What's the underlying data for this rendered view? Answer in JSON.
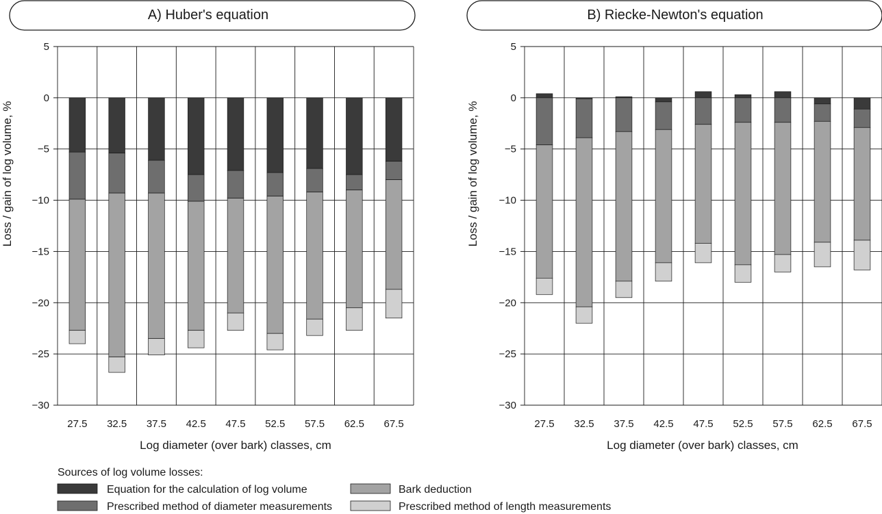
{
  "colors": {
    "equation": "#3a3a3a",
    "diameter": "#6e6e6e",
    "bark": "#a3a3a3",
    "length": "#d0d0d0",
    "grid": "#1a1a1a"
  },
  "chart_data": [
    {
      "type": "bar",
      "title": "A)  Huber's equation",
      "xlabel": "Log diameter (over bark) classes, cm",
      "ylabel": "Loss / gain of log volume, %",
      "categories": [
        "27.5",
        "32.5",
        "37.5",
        "42.5",
        "47.5",
        "52.5",
        "57.5",
        "62.5",
        "67.5"
      ],
      "ylim": [
        -30,
        5
      ],
      "yticks": [
        "5",
        "0",
        "-5",
        "-10",
        "-15",
        "-20",
        "-25",
        "-30"
      ],
      "ytick_values": [
        5,
        0,
        -5,
        -10,
        -15,
        -20,
        -25,
        -30
      ],
      "grid": true,
      "series": [
        {
          "name": "Equation for the calculation of log volume",
          "values": [
            -5.3,
            -5.4,
            -6.1,
            -7.5,
            -7.1,
            -7.3,
            -6.9,
            -7.5,
            -6.2
          ]
        },
        {
          "name": "Prescribed method of diameter measurements",
          "values": [
            -4.6,
            -3.9,
            -3.2,
            -2.6,
            -2.7,
            -2.3,
            -2.3,
            -1.5,
            -1.8
          ]
        },
        {
          "name": "Bark deduction",
          "values": [
            -12.8,
            -16.0,
            -14.2,
            -12.6,
            -11.2,
            -13.4,
            -12.4,
            -11.5,
            -10.7
          ]
        },
        {
          "name": "Prescribed method of length measurements",
          "values": [
            -1.3,
            -1.5,
            -1.6,
            -1.7,
            -1.7,
            -1.6,
            -1.6,
            -2.2,
            -2.8
          ]
        }
      ]
    },
    {
      "type": "bar",
      "title": "B) Riecke-Newton's equation",
      "xlabel": "Log diameter (over bark) classes, cm",
      "ylabel": "Loss / gain of log volume, %",
      "categories": [
        "27.5",
        "32.5",
        "37.5",
        "42.5",
        "47.5",
        "52.5",
        "57.5",
        "62.5",
        "67.5"
      ],
      "ylim": [
        -30,
        5
      ],
      "yticks": [
        "5",
        "0",
        "-5",
        "-10",
        "-15",
        "-20",
        "-25",
        "-30"
      ],
      "ytick_values": [
        5,
        0,
        -5,
        -10,
        -15,
        -20,
        -25,
        -30
      ],
      "grid": true,
      "series": [
        {
          "name": "Equation for the calculation of log volume",
          "values": [
            0.4,
            -0.1,
            0.1,
            -0.4,
            0.6,
            0.3,
            0.6,
            -0.6,
            -1.1
          ]
        },
        {
          "name": "Prescribed method of diameter measurements",
          "values": [
            -4.6,
            -3.8,
            -3.3,
            -2.7,
            -2.6,
            -2.4,
            -2.4,
            -1.7,
            -1.8
          ]
        },
        {
          "name": "Bark deduction",
          "values": [
            -13.0,
            -16.5,
            -14.6,
            -13.0,
            -11.6,
            -13.9,
            -12.9,
            -11.8,
            -11.0
          ]
        },
        {
          "name": "Prescribed method of length measurements",
          "values": [
            -1.6,
            -1.6,
            -1.6,
            -1.8,
            -1.9,
            -1.7,
            -1.7,
            -2.4,
            -2.9
          ]
        }
      ]
    }
  ],
  "legend": {
    "title": "Sources of log volume losses:",
    "items": [
      "Equation for the calculation of log volume",
      "Prescribed method of diameter measurements",
      "Bark deduction",
      "Prescribed method of length measurements"
    ]
  }
}
